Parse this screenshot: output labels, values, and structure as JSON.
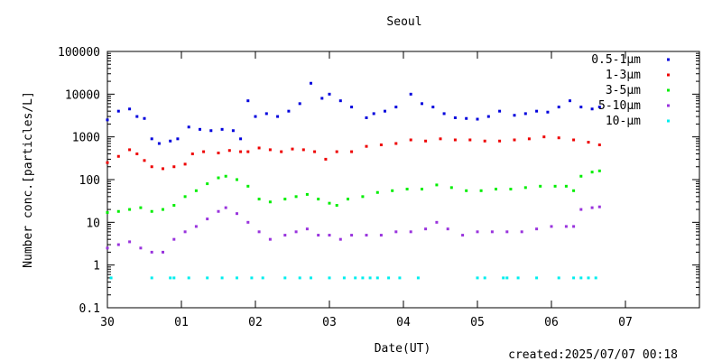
{
  "chart_data": {
    "type": "scatter",
    "title": "Seoul",
    "xlabel": "Date(UT)",
    "ylabel": "Number conc.[particles/L]",
    "y_scale": "log",
    "ylim": [
      0.1,
      100000
    ],
    "xlim": [
      0,
      8
    ],
    "x_tick_labels": [
      "30",
      "01",
      "02",
      "03",
      "04",
      "05",
      "06",
      "07"
    ],
    "y_tick_labels": [
      "0.1",
      "1",
      "10",
      "100",
      "1000",
      "10000",
      "100000"
    ],
    "grid": false,
    "legend_position": "top-right",
    "created_label": "created:2025/07/07 00:18",
    "series": [
      {
        "name": "0.5-1μm",
        "color": "#0000dd",
        "x": [
          0.0,
          0.15,
          0.3,
          0.4,
          0.5,
          0.6,
          0.7,
          0.85,
          0.95,
          1.1,
          1.25,
          1.4,
          1.55,
          1.7,
          1.8,
          1.9,
          2.0,
          2.15,
          2.3,
          2.45,
          2.6,
          2.75,
          2.9,
          3.0,
          3.15,
          3.3,
          3.5,
          3.6,
          3.75,
          3.9,
          4.1,
          4.25,
          4.4,
          4.55,
          4.7,
          4.85,
          5.0,
          5.15,
          5.3,
          5.5,
          5.65,
          5.8,
          5.95,
          6.1,
          6.25,
          6.4,
          6.55,
          6.65
        ],
        "y": [
          2500,
          4000,
          4500,
          3000,
          2700,
          900,
          700,
          800,
          900,
          1700,
          1500,
          1400,
          1500,
          1400,
          900,
          7000,
          3000,
          3500,
          3000,
          4000,
          6000,
          18000,
          8000,
          10000,
          7000,
          5000,
          2800,
          3500,
          4000,
          5000,
          10000,
          6000,
          5000,
          3500,
          2800,
          2700,
          2600,
          3000,
          4000,
          3200,
          3500,
          4000,
          3800,
          5000,
          7000,
          5000,
          4500,
          5000
        ]
      },
      {
        "name": "1-3μm",
        "color": "#ee0000",
        "x": [
          0.0,
          0.15,
          0.3,
          0.4,
          0.5,
          0.6,
          0.75,
          0.9,
          1.05,
          1.15,
          1.3,
          1.5,
          1.65,
          1.8,
          1.9,
          2.05,
          2.2,
          2.35,
          2.5,
          2.65,
          2.8,
          2.95,
          3.1,
          3.3,
          3.5,
          3.7,
          3.9,
          4.1,
          4.3,
          4.5,
          4.7,
          4.9,
          5.1,
          5.3,
          5.5,
          5.7,
          5.9,
          6.1,
          6.3,
          6.5,
          6.65
        ],
        "y": [
          250,
          350,
          500,
          400,
          280,
          200,
          180,
          200,
          230,
          400,
          450,
          420,
          480,
          450,
          450,
          550,
          500,
          450,
          520,
          500,
          450,
          300,
          450,
          450,
          600,
          650,
          700,
          850,
          800,
          900,
          850,
          850,
          800,
          800,
          850,
          900,
          1000,
          950,
          850,
          750,
          650
        ]
      },
      {
        "name": "3-5μm",
        "color": "#00ee00",
        "x": [
          0.0,
          0.15,
          0.3,
          0.45,
          0.6,
          0.75,
          0.9,
          1.05,
          1.2,
          1.35,
          1.5,
          1.6,
          1.75,
          1.9,
          2.05,
          2.2,
          2.4,
          2.55,
          2.7,
          2.85,
          3.0,
          3.1,
          3.25,
          3.45,
          3.65,
          3.85,
          4.05,
          4.25,
          4.45,
          4.65,
          4.85,
          5.05,
          5.25,
          5.45,
          5.65,
          5.85,
          6.05,
          6.2,
          6.3,
          6.4,
          6.55,
          6.65
        ],
        "y": [
          17,
          18,
          20,
          22,
          18,
          20,
          25,
          40,
          55,
          80,
          110,
          120,
          100,
          70,
          35,
          30,
          35,
          40,
          45,
          35,
          28,
          25,
          35,
          40,
          50,
          55,
          60,
          60,
          75,
          65,
          55,
          55,
          60,
          60,
          65,
          70,
          70,
          70,
          55,
          120,
          150,
          160
        ]
      },
      {
        "name": "5-10μm",
        "color": "#9933dd",
        "x": [
          0.0,
          0.15,
          0.3,
          0.45,
          0.6,
          0.75,
          0.9,
          1.05,
          1.2,
          1.35,
          1.5,
          1.6,
          1.75,
          1.9,
          2.05,
          2.2,
          2.4,
          2.55,
          2.7,
          2.85,
          3.0,
          3.15,
          3.3,
          3.5,
          3.7,
          3.9,
          4.1,
          4.3,
          4.45,
          4.6,
          4.8,
          5.0,
          5.2,
          5.4,
          5.6,
          5.8,
          6.0,
          6.2,
          6.3,
          6.4,
          6.55,
          6.65
        ],
        "y": [
          2.5,
          3,
          3.5,
          2.5,
          2,
          2,
          4,
          6,
          8,
          12,
          18,
          22,
          16,
          10,
          6,
          4,
          5,
          6,
          7,
          5,
          5,
          4,
          5,
          5,
          5,
          6,
          6,
          7,
          10,
          7,
          5,
          6,
          6,
          6,
          6,
          7,
          8,
          8,
          8,
          20,
          22,
          23
        ]
      },
      {
        "name": "10-μm",
        "color": "#00eeee",
        "x": [
          0.05,
          0.6,
          0.85,
          0.9,
          1.1,
          1.35,
          1.55,
          1.75,
          1.95,
          2.1,
          2.4,
          2.6,
          2.75,
          3.0,
          3.2,
          3.35,
          3.45,
          3.55,
          3.65,
          3.8,
          3.95,
          4.2,
          5.0,
          5.1,
          5.35,
          5.4,
          5.55,
          5.8,
          6.1,
          6.3,
          6.4,
          6.5,
          6.6
        ],
        "y": [
          0.5,
          0.5,
          0.5,
          0.5,
          0.5,
          0.5,
          0.5,
          0.5,
          0.5,
          0.5,
          0.5,
          0.5,
          0.5,
          0.5,
          0.5,
          0.5,
          0.5,
          0.5,
          0.5,
          0.5,
          0.5,
          0.5,
          0.5,
          0.5,
          0.5,
          0.5,
          0.5,
          0.5,
          0.5,
          0.5,
          0.5,
          0.5,
          0.5
        ]
      }
    ]
  }
}
